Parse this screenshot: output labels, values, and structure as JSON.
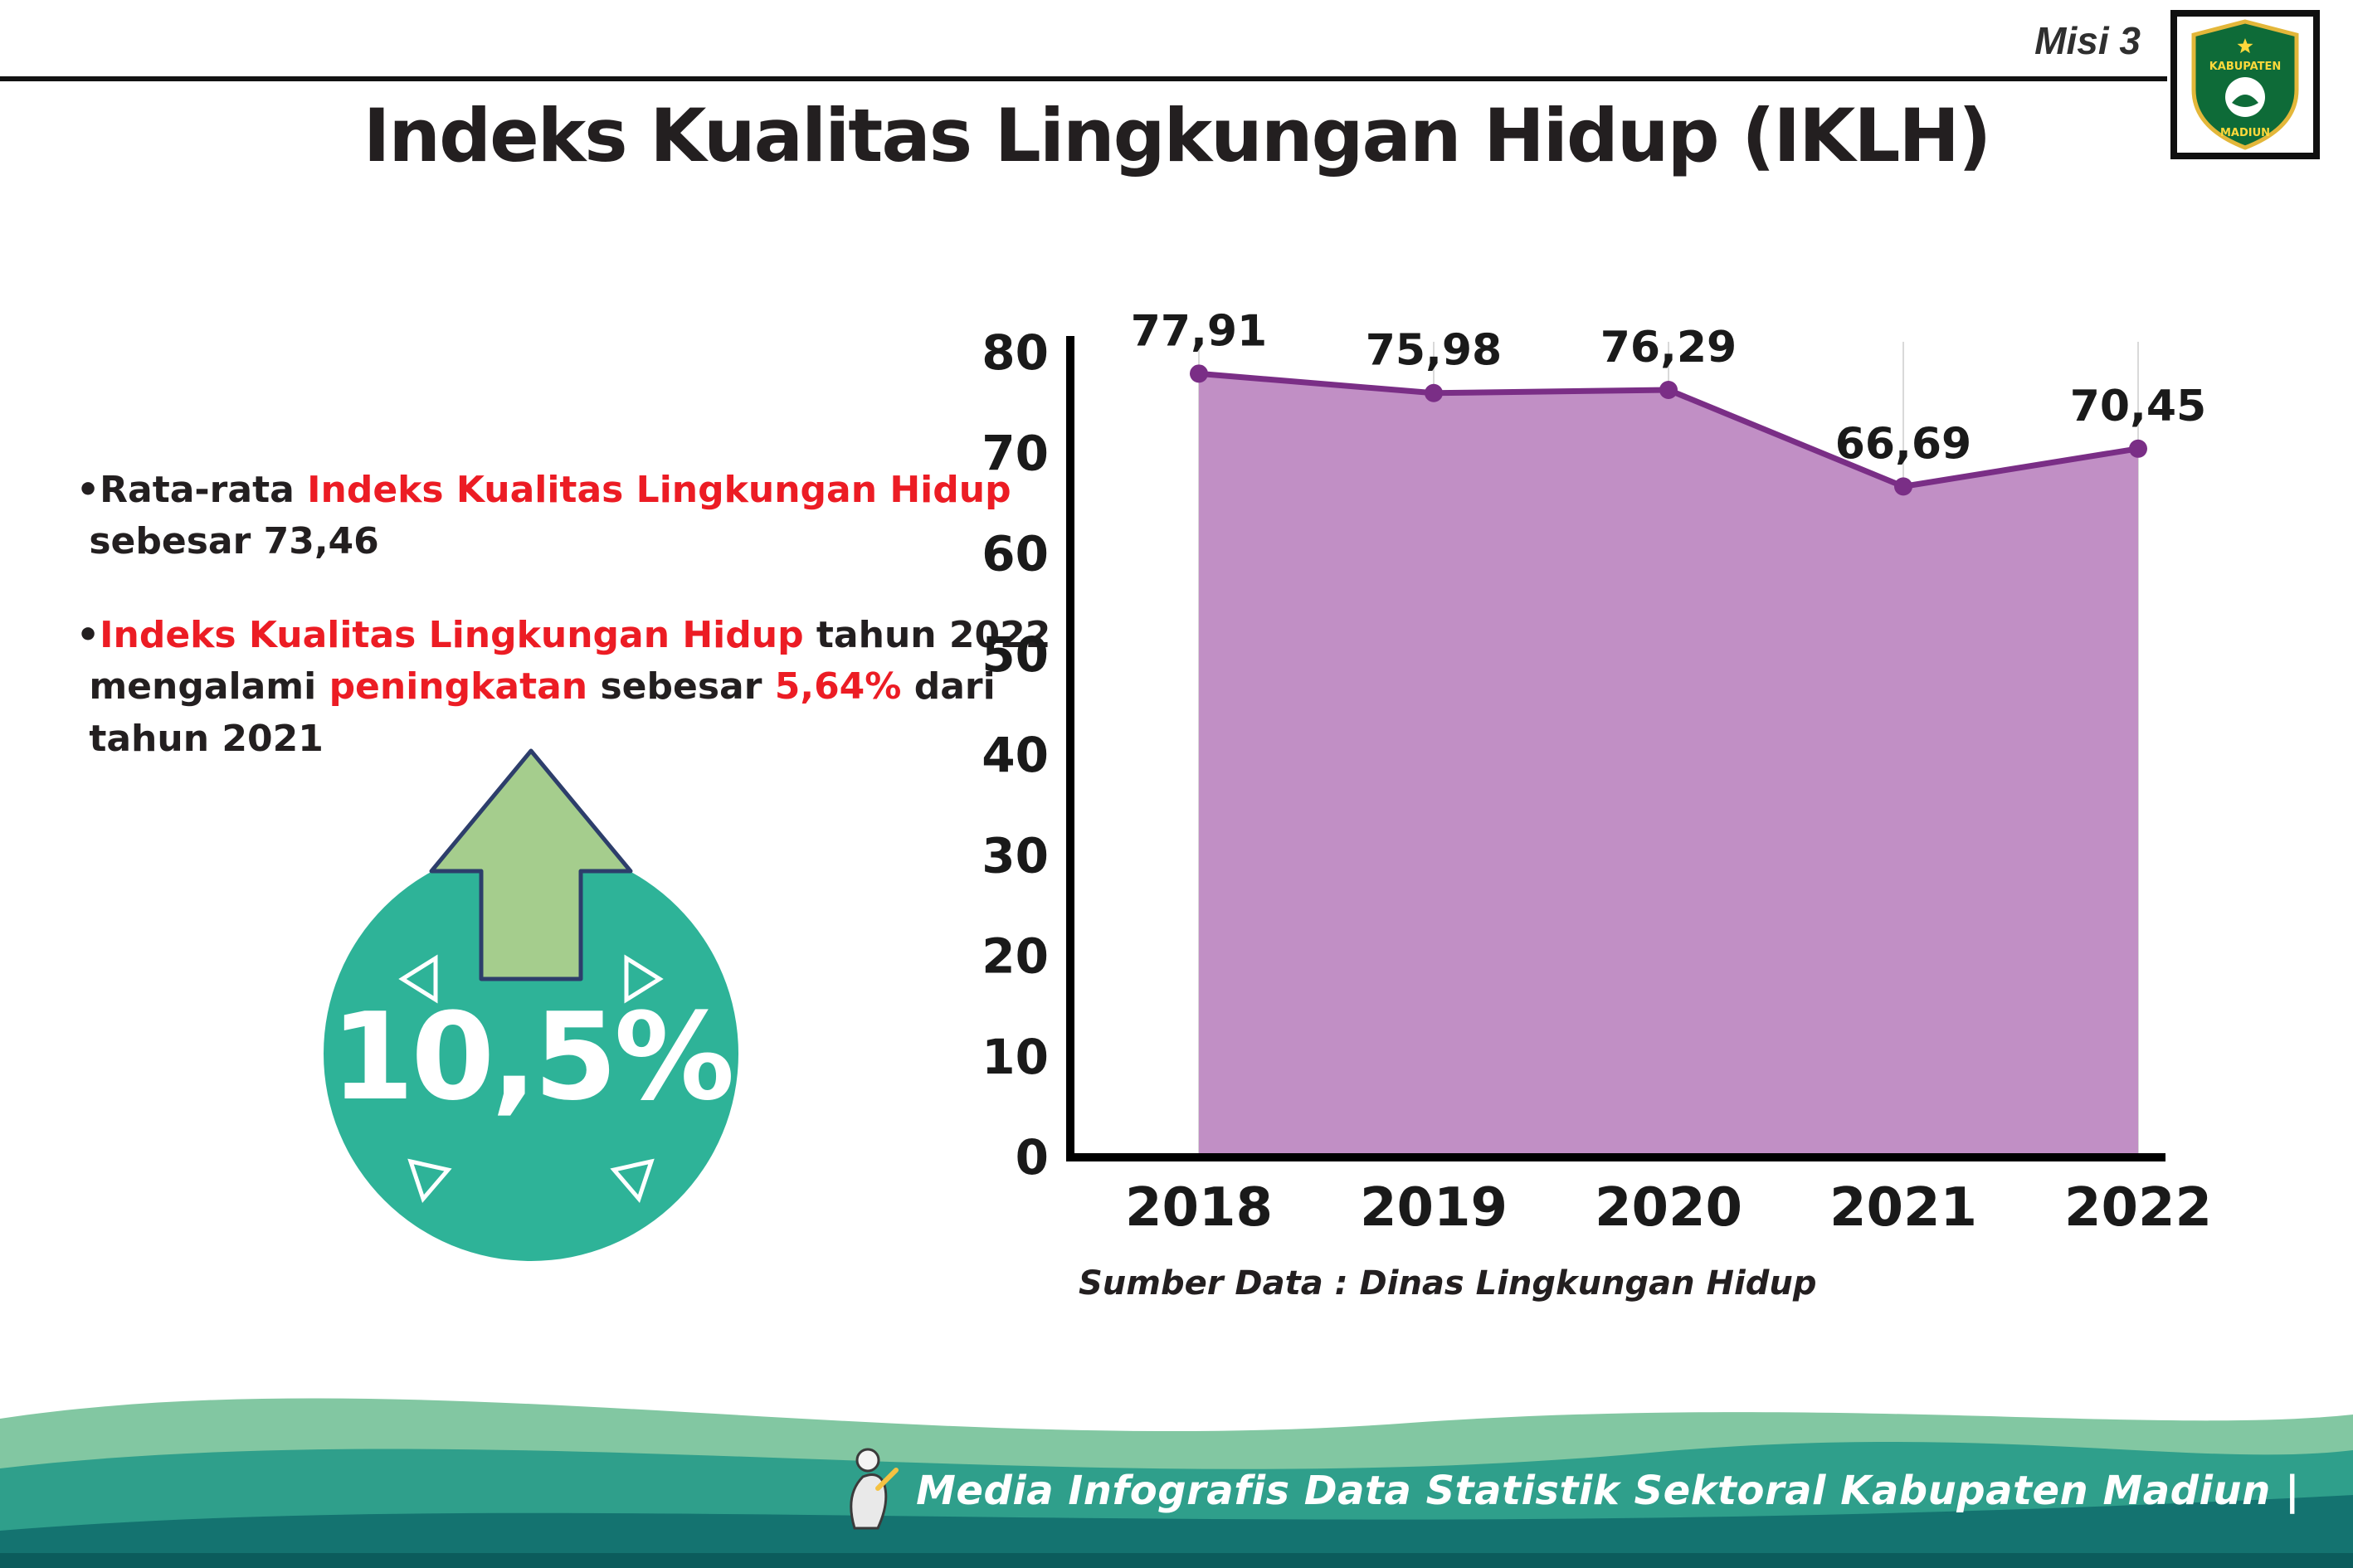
{
  "header": {
    "misi": "Misi 3",
    "title": "Indeks Kualitas Lingkungan Hidup (IKLH)",
    "logo_top": "KABUPATEN",
    "logo_bottom": "MADIUN"
  },
  "bullets": [
    {
      "segments": [
        {
          "text": "•Rata-rata ",
          "color": "dark"
        },
        {
          "text": "Indeks Kualitas Lingkungan Hidup",
          "color": "red"
        },
        {
          "text": "\n sebesar 73,46",
          "color": "dark"
        }
      ]
    },
    {
      "segments": [
        {
          "text": "•",
          "color": "dark"
        },
        {
          "text": "Indeks Kualitas Lingkungan Hidup",
          "color": "red"
        },
        {
          "text": " tahun 2022\n mengalami ",
          "color": "dark"
        },
        {
          "text": "peningkatan",
          "color": "red"
        },
        {
          "text": " sebesar ",
          "color": "dark"
        },
        {
          "text": "5,64%",
          "color": "red"
        },
        {
          "text": " dari\n tahun 2021",
          "color": "dark"
        }
      ]
    }
  ],
  "badge": {
    "value": "10,5%"
  },
  "chart_data": {
    "type": "area",
    "categories": [
      "2018",
      "2019",
      "2020",
      "2021",
      "2022"
    ],
    "values": [
      77.91,
      75.98,
      76.29,
      66.69,
      70.45
    ],
    "value_labels": [
      "77,91",
      "75,98",
      "76,29",
      "66,69",
      "70,45"
    ],
    "ylim": [
      0,
      80
    ],
    "yticks": [
      0,
      10,
      20,
      30,
      40,
      50,
      60,
      70,
      80
    ],
    "grid": "vertical-light",
    "legend": false,
    "fill_color": "#c18fc5",
    "line_color": "#7a2e86",
    "source": "Sumber Data : Dinas Lingkungan Hidup"
  },
  "footer": {
    "text": "Media Infografis Data Statistik Sektoral Kabupaten Madiun |"
  },
  "colors": {
    "accent_red": "#ec1c24",
    "badge_teal": "#2eb398",
    "arrow_green": "#a5cd8d",
    "arrow_outline": "#2d3e6b",
    "footer_green_light": "#82c7a2",
    "footer_teal": "#2f9f8b",
    "footer_dark": "#147370",
    "footer_strip": "#0b5c5c"
  }
}
